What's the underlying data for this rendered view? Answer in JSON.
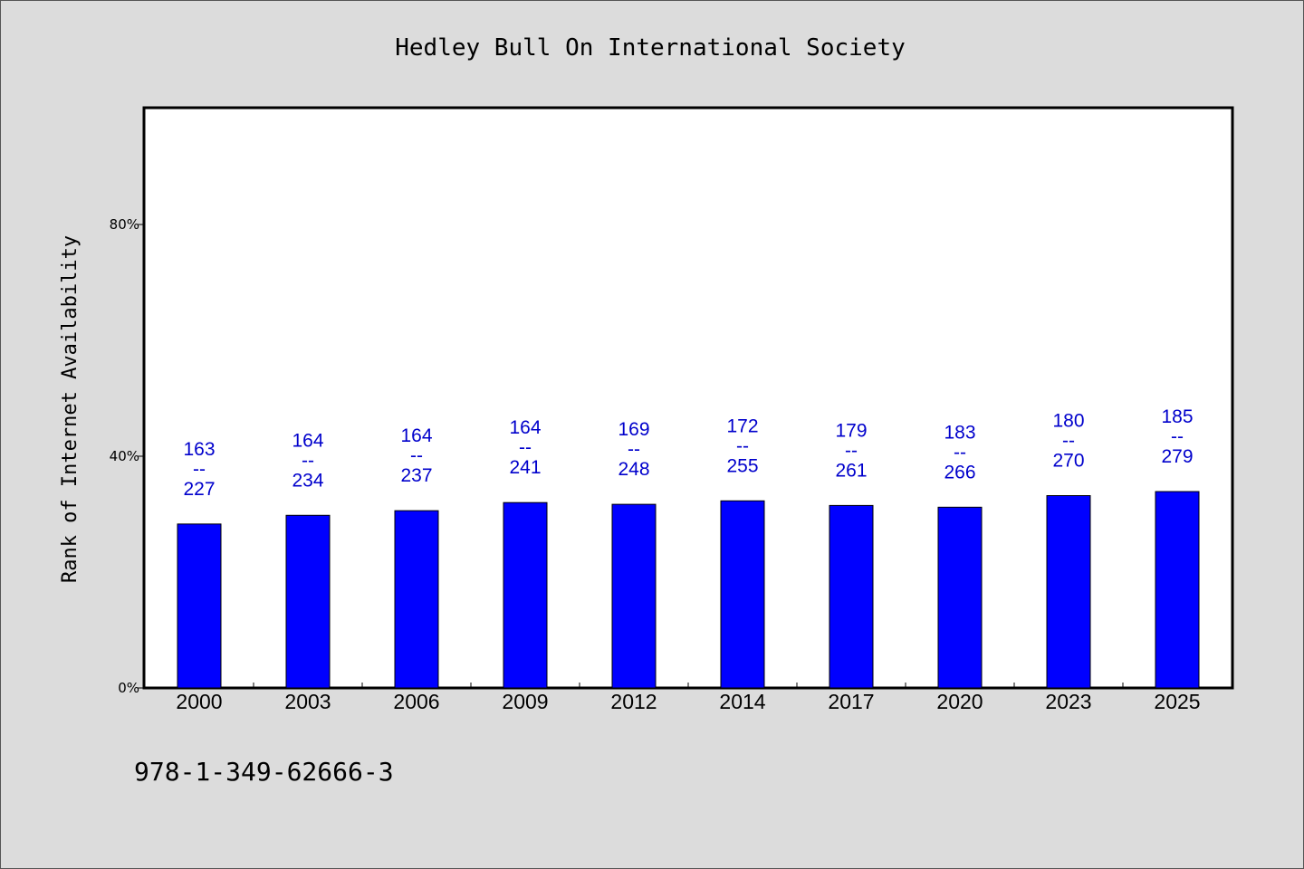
{
  "colors": {
    "bar": "#0000ff",
    "label": "#0000cc",
    "background": "#dcdcdc",
    "plot_bg": "#ffffff"
  },
  "footer": "978-1-349-62666-3",
  "chart_data": {
    "type": "bar",
    "title": "Hedley Bull On International Society",
    "ylabel": "Rank of Internet Availability",
    "xlabel": "",
    "ylim": [
      0,
      100
    ],
    "yticks": [
      0,
      40,
      80
    ],
    "ytick_labels": [
      "0%",
      "40%",
      "80%"
    ],
    "grid": false,
    "categories": [
      "2000",
      "2003",
      "2006",
      "2009",
      "2012",
      "2014",
      "2017",
      "2020",
      "2023",
      "2025"
    ],
    "values": [
      28.3,
      29.8,
      30.6,
      32.0,
      31.7,
      32.3,
      31.5,
      31.2,
      33.2,
      33.9
    ],
    "annotations": [
      {
        "top": "163",
        "mid": "--",
        "bottom": "227"
      },
      {
        "top": "164",
        "mid": "--",
        "bottom": "234"
      },
      {
        "top": "164",
        "mid": "--",
        "bottom": "237"
      },
      {
        "top": "164",
        "mid": "--",
        "bottom": "241"
      },
      {
        "top": "169",
        "mid": "--",
        "bottom": "248"
      },
      {
        "top": "172",
        "mid": "--",
        "bottom": "255"
      },
      {
        "top": "179",
        "mid": "--",
        "bottom": "261"
      },
      {
        "top": "183",
        "mid": "--",
        "bottom": "266"
      },
      {
        "top": "180",
        "mid": "--",
        "bottom": "270"
      },
      {
        "top": "185",
        "mid": "--",
        "bottom": "279"
      }
    ]
  }
}
